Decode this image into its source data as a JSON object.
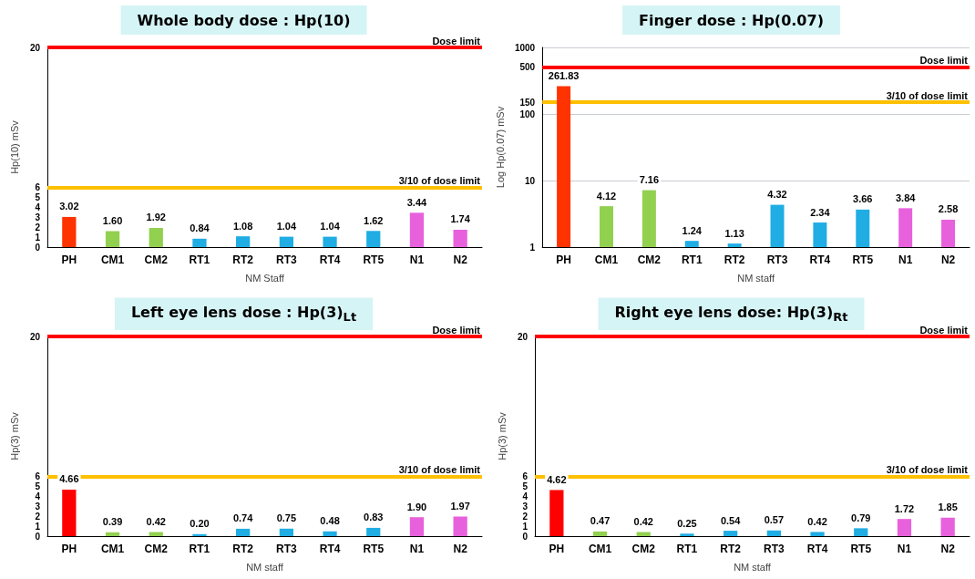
{
  "chart_data": [
    {
      "type": "bar",
      "title": "Whole body dose : Hp(10)",
      "xlabel": "NM Staff",
      "ylabel": "Hp(10) mSv",
      "categories": [
        "PH",
        "CM1",
        "CM2",
        "RT1",
        "RT2",
        "RT3",
        "RT4",
        "RT5",
        "N1",
        "N2"
      ],
      "values": [
        3.02,
        1.6,
        1.92,
        0.84,
        1.08,
        1.04,
        1.04,
        1.62,
        3.44,
        1.74
      ],
      "value_labels": [
        "3.02",
        "1.60",
        "1.92",
        "0.84",
        "1.08",
        "1.04",
        "1.04",
        "1.62",
        "3.44",
        "1.74"
      ],
      "colors": [
        "#ff3300",
        "#92d050",
        "#92d050",
        "#1fade4",
        "#1fade4",
        "#1fade4",
        "#1fade4",
        "#1fade4",
        "#e861dc",
        "#e861dc"
      ],
      "ylim": [
        0,
        20
      ],
      "yticks": [
        0,
        1,
        2,
        3,
        4,
        5,
        6,
        20
      ],
      "grid": false,
      "ref_lines": [
        {
          "axis": "y",
          "value": 20,
          "label": "Dose limit",
          "color": "#ff0000"
        },
        {
          "axis": "y",
          "value": 6,
          "label": "3/10 of dose limit",
          "color": "#ffc000"
        }
      ]
    },
    {
      "type": "bar",
      "title": "Finger dose : Hp(0.07)",
      "xlabel": "NM staff",
      "ylabel": "Log Hp(0.07) mSv",
      "categories": [
        "PH",
        "CM1",
        "CM2",
        "RT1",
        "RT2",
        "RT3",
        "RT4",
        "RT5",
        "N1",
        "N2"
      ],
      "values": [
        261.83,
        4.12,
        7.16,
        1.24,
        1.13,
        4.32,
        2.34,
        3.66,
        3.84,
        2.58
      ],
      "value_labels": [
        "261.83",
        "4.12",
        "7.16",
        "1.24",
        "1.13",
        "4.32",
        "2.34",
        "3.66",
        "3.84",
        "2.58"
      ],
      "colors": [
        "#ff3300",
        "#92d050",
        "#92d050",
        "#1fade4",
        "#1fade4",
        "#1fade4",
        "#1fade4",
        "#1fade4",
        "#e861dc",
        "#e861dc"
      ],
      "log": "y",
      "ylim": [
        1,
        1000
      ],
      "yticks": [
        1,
        10,
        100,
        150,
        500,
        {
          "value": 1000,
          "label": "1000"
        }
      ],
      "grid": "y",
      "ref_lines": [
        {
          "axis": "y",
          "value": 500,
          "label": "Dose limit",
          "color": "#ff0000"
        },
        {
          "axis": "y",
          "value": 150,
          "label": "3/10 of dose limit",
          "color": "#ffc000"
        }
      ]
    },
    {
      "type": "bar",
      "title": "Left eye lens dose : Hp(3)$_{Lt}$",
      "xlabel": "NM staff",
      "ylabel": "Hp(3) mSv",
      "categories": [
        "PH",
        "CM1",
        "CM2",
        "RT1",
        "RT2",
        "RT3",
        "RT4",
        "RT5",
        "N1",
        "N2"
      ],
      "values": [
        4.66,
        0.39,
        0.42,
        0.2,
        0.74,
        0.75,
        0.48,
        0.83,
        1.9,
        1.97
      ],
      "value_labels": [
        "4.66",
        "0.39",
        "0.42",
        "0.20",
        "0.74",
        "0.75",
        "0.48",
        "0.83",
        "1.90",
        "1.97"
      ],
      "colors": [
        "#ff0000",
        "#92d050",
        "#92d050",
        "#1fade4",
        "#1fade4",
        "#1fade4",
        "#1fade4",
        "#1fade4",
        "#e861dc",
        "#e861dc"
      ],
      "ylim": [
        0,
        20
      ],
      "yticks": [
        0,
        1,
        2,
        3,
        4,
        5,
        6,
        20
      ],
      "grid": false,
      "ref_lines": [
        {
          "axis": "y",
          "value": 20,
          "label": "Dose limit",
          "color": "#ff0000"
        },
        {
          "axis": "y",
          "value": 6,
          "label": "3/10 of dose limit",
          "color": "#ffc000"
        }
      ]
    },
    {
      "type": "bar",
      "title": "Right eye lens dose: Hp(3)$_{Rt}$",
      "xlabel": "NM staff",
      "ylabel": "Hp(3) mSv",
      "categories": [
        "PH",
        "CM1",
        "CM2",
        "RT1",
        "RT2",
        "RT3",
        "RT4",
        "RT5",
        "N1",
        "N2"
      ],
      "values": [
        4.62,
        0.47,
        0.42,
        0.25,
        0.54,
        0.57,
        0.42,
        0.79,
        1.72,
        1.85
      ],
      "value_labels": [
        "4.62",
        "0.47",
        "0.42",
        "0.25",
        "0.54",
        "0.57",
        "0.42",
        "0.79",
        "1.72",
        "1.85"
      ],
      "colors": [
        "#ff0000",
        "#92d050",
        "#92d050",
        "#1fade4",
        "#1fade4",
        "#1fade4",
        "#1fade4",
        "#1fade4",
        "#e861dc",
        "#e861dc"
      ],
      "ylim": [
        0,
        20
      ],
      "yticks": [
        0,
        1,
        2,
        3,
        4,
        5,
        6,
        20
      ],
      "grid": false,
      "ref_lines": [
        {
          "axis": "y",
          "value": 20,
          "label": "Dose limit",
          "color": "#ff0000"
        },
        {
          "axis": "y",
          "value": 6,
          "label": "3/10 of dose limit",
          "color": "#ffc000"
        }
      ]
    }
  ]
}
